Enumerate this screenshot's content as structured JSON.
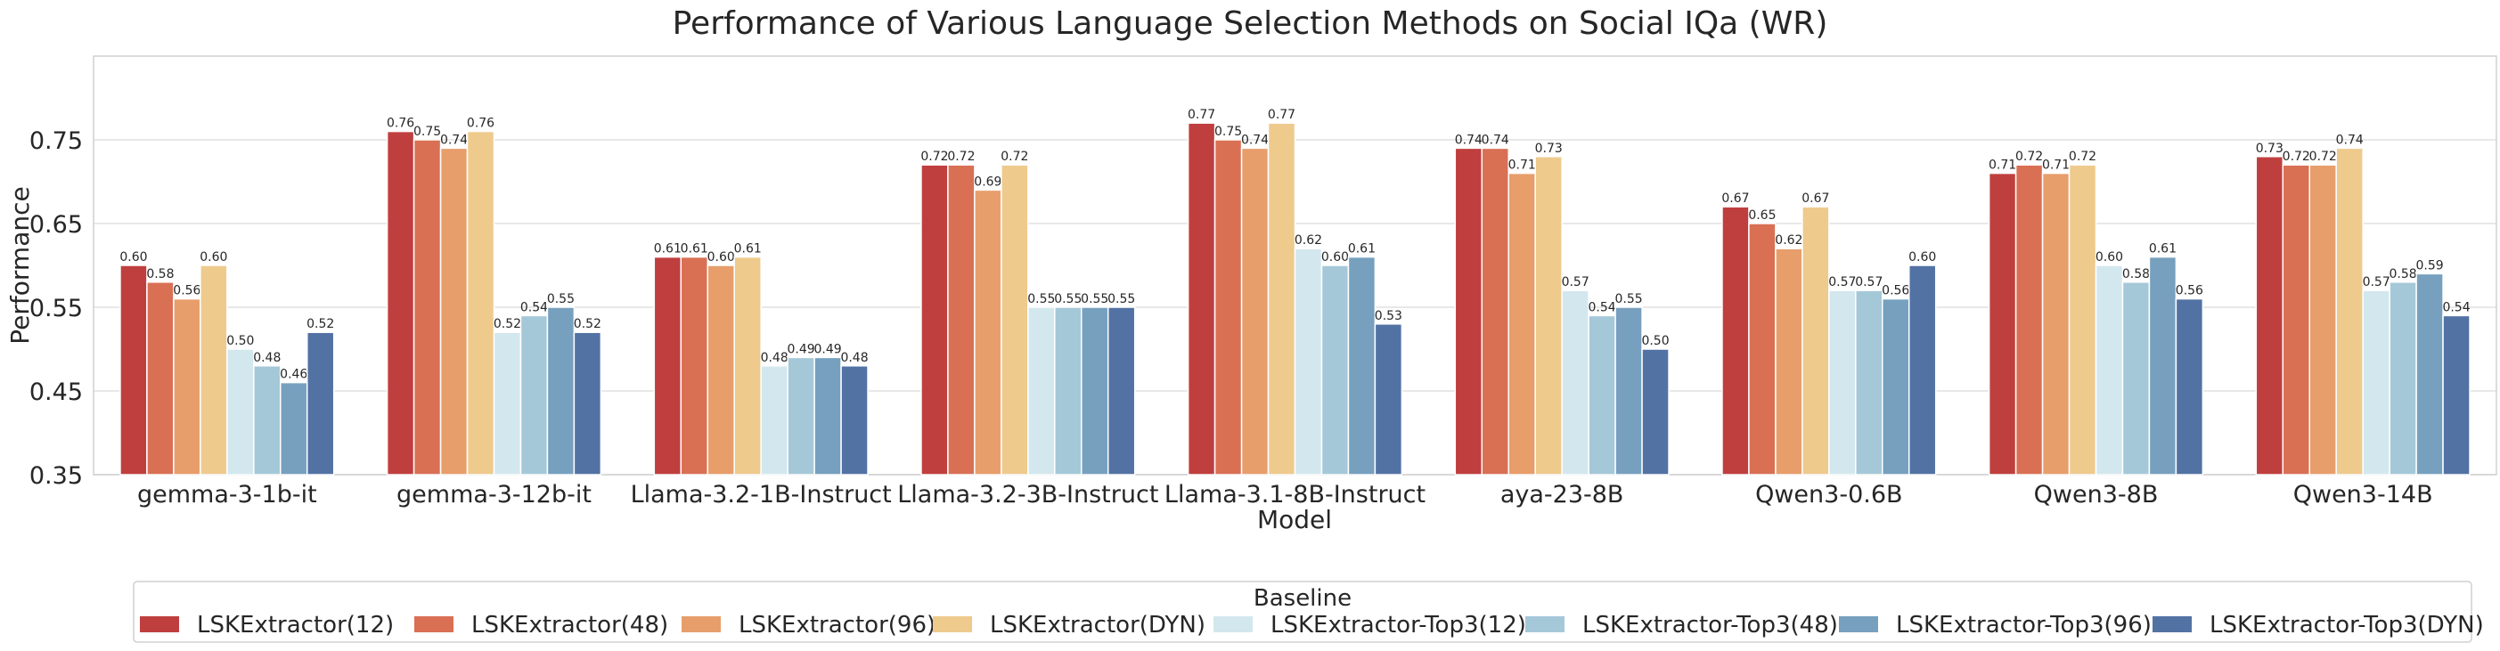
{
  "chart_data": {
    "type": "bar",
    "title": "Performance of Various Language Selection Methods on Social IQa (WR)",
    "xlabel": "Model",
    "ylabel": "Performance",
    "ylim": [
      0.35,
      0.85
    ],
    "yticks": [
      "0.35",
      "0.45",
      "0.55",
      "0.65",
      "0.75"
    ],
    "grid": true,
    "legend_title": "Baseline",
    "legend_placement": "bottom-center",
    "categories": [
      "gemma-3-1b-it",
      "gemma-3-12b-it",
      "Llama-3.2-1B-Instruct",
      "Llama-3.2-3B-Instruct",
      "Llama-3.1-8B-Instruct",
      "aya-23-8B",
      "Qwen3-0.6B",
      "Qwen3-8B",
      "Qwen3-14B"
    ],
    "series": [
      {
        "name": "LSKExtractor(12)",
        "color": "#bf3f3e",
        "values": [
          0.6,
          0.76,
          0.61,
          0.72,
          0.77,
          0.74,
          0.67,
          0.71,
          0.73
        ]
      },
      {
        "name": "LSKExtractor(48)",
        "color": "#d97054",
        "values": [
          0.58,
          0.75,
          0.61,
          0.72,
          0.75,
          0.74,
          0.65,
          0.72,
          0.72
        ]
      },
      {
        "name": "LSKExtractor(96)",
        "color": "#e79e6b",
        "values": [
          0.56,
          0.74,
          0.6,
          0.69,
          0.74,
          0.71,
          0.62,
          0.71,
          0.72
        ]
      },
      {
        "name": "LSKExtractor(DYN)",
        "color": "#eeca8d",
        "values": [
          0.6,
          0.76,
          0.61,
          0.72,
          0.77,
          0.73,
          0.67,
          0.72,
          0.74
        ]
      },
      {
        "name": "LSKExtractor-Top3(12)",
        "color": "#d3e7ee",
        "values": [
          0.5,
          0.52,
          0.48,
          0.55,
          0.62,
          0.57,
          0.57,
          0.6,
          0.57
        ]
      },
      {
        "name": "LSKExtractor-Top3(48)",
        "color": "#a5c8d8",
        "values": [
          0.48,
          0.54,
          0.49,
          0.55,
          0.6,
          0.54,
          0.57,
          0.58,
          0.58
        ]
      },
      {
        "name": "LSKExtractor-Top3(96)",
        "color": "#77a0bf",
        "values": [
          0.46,
          0.55,
          0.49,
          0.55,
          0.61,
          0.55,
          0.56,
          0.61,
          0.59
        ]
      },
      {
        "name": "LSKExtractor-Top3(DYN)",
        "color": "#5272a4",
        "values": [
          0.52,
          0.52,
          0.48,
          0.55,
          0.53,
          0.5,
          0.6,
          0.56,
          0.54
        ]
      }
    ]
  }
}
